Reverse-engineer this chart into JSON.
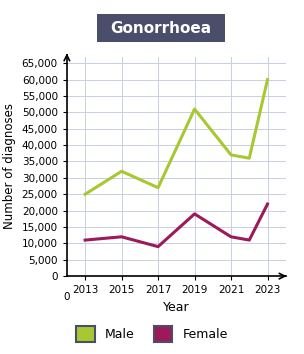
{
  "title": "Gonorrhoea",
  "xlabel": "Year",
  "ylabel": "Number of diagnoses",
  "years": [
    2013,
    2015,
    2017,
    2019,
    2021,
    2022,
    2023
  ],
  "male_values": [
    25000,
    32000,
    27000,
    51000,
    37000,
    36000,
    60000
  ],
  "female_values": [
    11000,
    12000,
    9000,
    19000,
    12000,
    11000,
    22000
  ],
  "male_color": "#a8c832",
  "female_color": "#9c1a5a",
  "title_bg_color": "#4a4e6a",
  "title_text_color": "#ffffff",
  "grid_color": "#c8d0e0",
  "ylim": [
    0,
    67000
  ],
  "yticks": [
    0,
    5000,
    10000,
    15000,
    20000,
    25000,
    30000,
    35000,
    40000,
    45000,
    50000,
    55000,
    60000,
    65000
  ],
  "xticks": [
    2013,
    2015,
    2017,
    2019,
    2021,
    2023
  ],
  "legend_male": "Male",
  "legend_female": "Female"
}
